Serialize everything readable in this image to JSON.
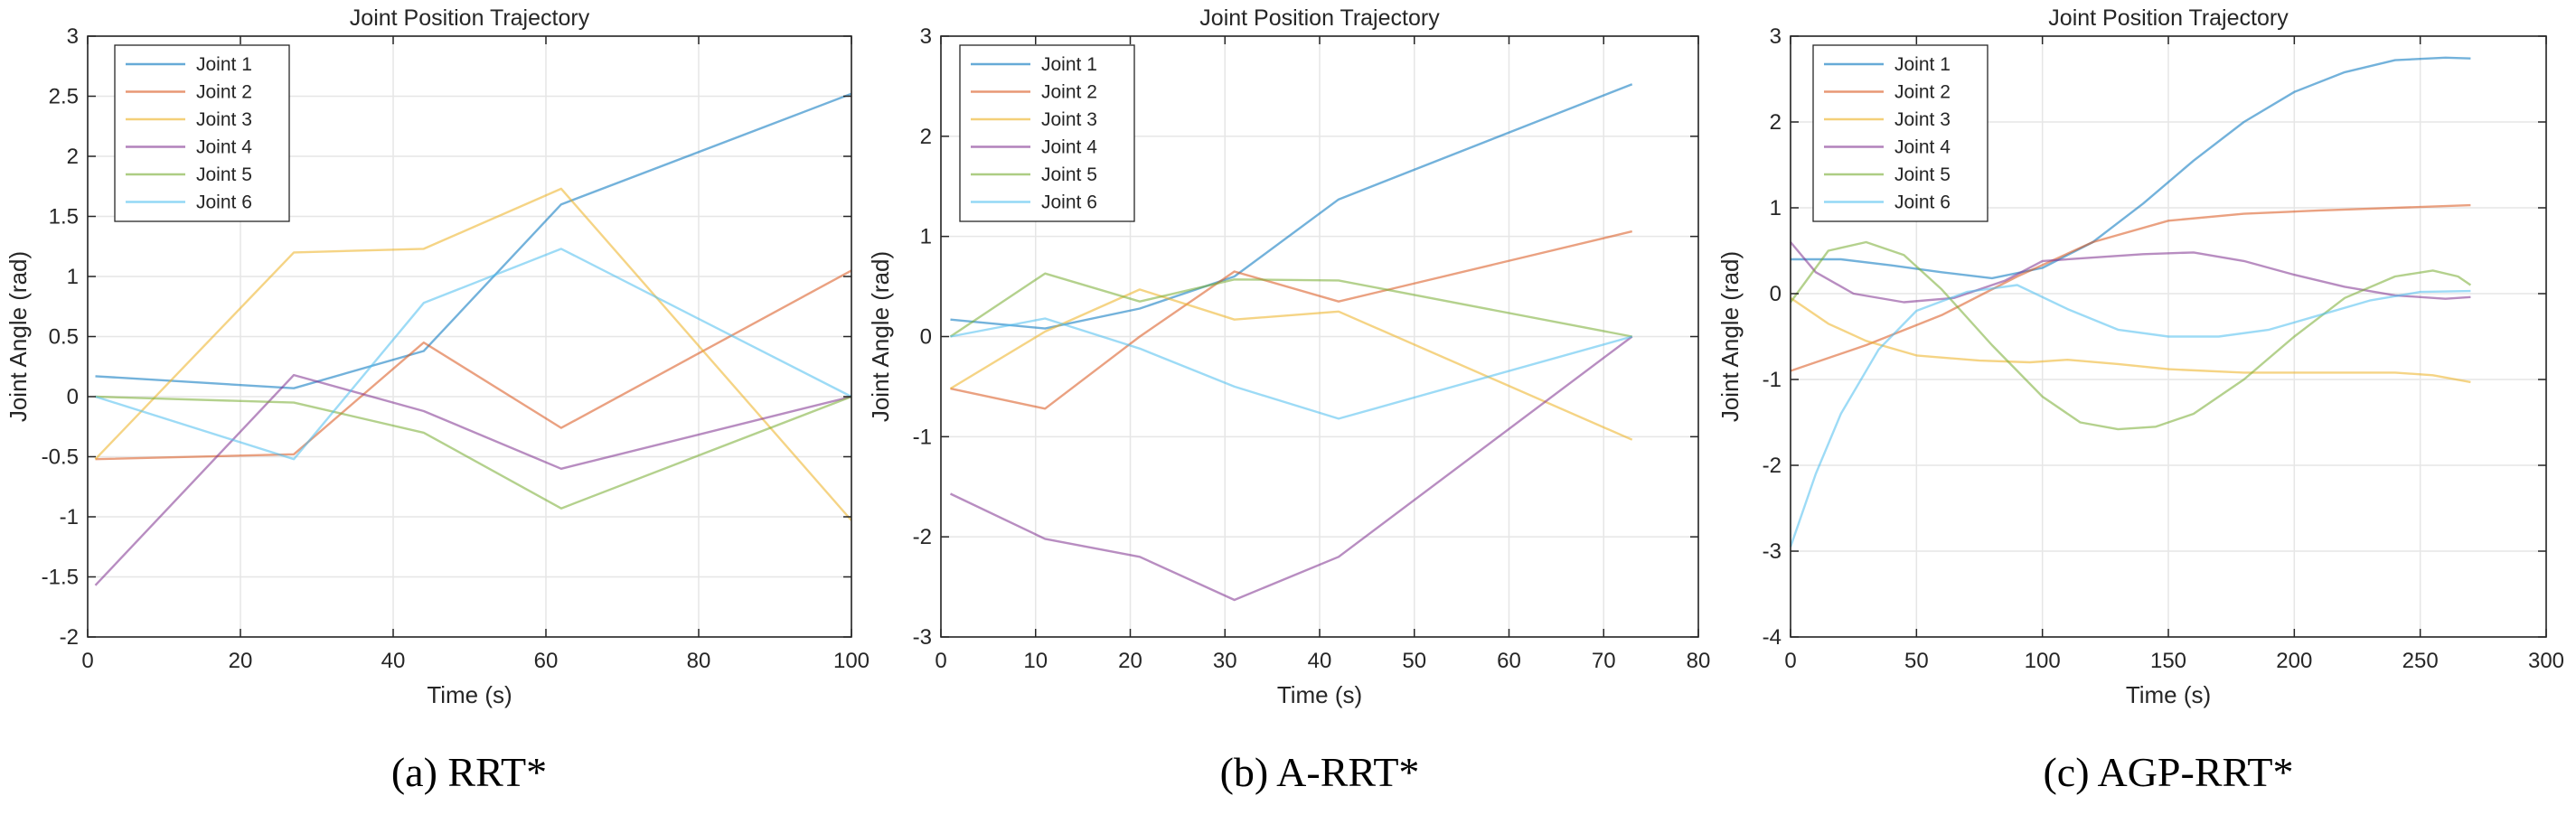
{
  "chart_data": [
    {
      "type": "line",
      "title": "Joint Position Trajectory",
      "xlabel": "Time (s)",
      "ylabel": "Joint Angle (rad)",
      "caption": "(a) RRT*",
      "xlim": [
        0,
        100
      ],
      "ylim": [
        -2,
        3
      ],
      "xticks": [
        0,
        20,
        40,
        60,
        80,
        100
      ],
      "yticks": [
        -2,
        -1.5,
        -1,
        -0.5,
        0,
        0.5,
        1,
        1.5,
        2,
        2.5,
        3
      ],
      "xtick_labels": [
        "0",
        "20",
        "40",
        "60",
        "80",
        "100"
      ],
      "ytick_labels": [
        "-2",
        "-1.5",
        "-1",
        "-0.5",
        "0",
        "0.5",
        "1",
        "1.5",
        "2",
        "2.5",
        "3"
      ],
      "grid": true,
      "legend_position": "top-left",
      "series": [
        {
          "name": "Joint 1",
          "color": "#0072BD",
          "x": [
            1,
            27,
            44,
            62,
            100
          ],
          "y": [
            0.17,
            0.07,
            0.38,
            1.6,
            2.52
          ]
        },
        {
          "name": "Joint 2",
          "color": "#D95319",
          "x": [
            1,
            27,
            44,
            62,
            100
          ],
          "y": [
            -0.52,
            -0.48,
            0.45,
            -0.26,
            1.05
          ]
        },
        {
          "name": "Joint 3",
          "color": "#EDB120",
          "x": [
            1,
            27,
            44,
            62,
            100
          ],
          "y": [
            -0.52,
            1.2,
            1.23,
            1.73,
            -1.03
          ]
        },
        {
          "name": "Joint 4",
          "color": "#7E2F8E",
          "x": [
            1,
            27,
            44,
            62,
            100
          ],
          "y": [
            -1.57,
            0.18,
            -0.12,
            -0.6,
            0
          ]
        },
        {
          "name": "Joint 5",
          "color": "#77AC30",
          "x": [
            1,
            27,
            44,
            62,
            100
          ],
          "y": [
            0,
            -0.05,
            -0.3,
            -0.93,
            0
          ]
        },
        {
          "name": "Joint 6",
          "color": "#4DBEEE",
          "x": [
            1,
            27,
            44,
            62,
            100
          ],
          "y": [
            0,
            -0.52,
            0.78,
            1.23,
            0
          ]
        }
      ]
    },
    {
      "type": "line",
      "title": "Joint Position Trajectory",
      "xlabel": "Time (s)",
      "ylabel": "Joint Angle (rad)",
      "caption": "(b) A-RRT*",
      "xlim": [
        0,
        80
      ],
      "ylim": [
        -3,
        3
      ],
      "xticks": [
        0,
        10,
        20,
        30,
        40,
        50,
        60,
        70,
        80
      ],
      "yticks": [
        -3,
        -2,
        -1,
        0,
        1,
        2,
        3
      ],
      "xtick_labels": [
        "0",
        "10",
        "20",
        "30",
        "40",
        "50",
        "60",
        "70",
        "80"
      ],
      "ytick_labels": [
        "-3",
        "-2",
        "-1",
        "0",
        "1",
        "2",
        "3"
      ],
      "grid": true,
      "legend_position": "top-left",
      "series": [
        {
          "name": "Joint 1",
          "color": "#0072BD",
          "x": [
            1,
            11,
            21,
            31,
            42,
            73
          ],
          "y": [
            0.17,
            0.08,
            0.28,
            0.6,
            1.37,
            2.52
          ]
        },
        {
          "name": "Joint 2",
          "color": "#D95319",
          "x": [
            1,
            11,
            21,
            31,
            42,
            73
          ],
          "y": [
            -0.52,
            -0.72,
            0.0,
            0.65,
            0.35,
            1.05
          ]
        },
        {
          "name": "Joint 3",
          "color": "#EDB120",
          "x": [
            1,
            11,
            21,
            31,
            42,
            73
          ],
          "y": [
            -0.52,
            0.05,
            0.47,
            0.17,
            0.25,
            -1.03
          ]
        },
        {
          "name": "Joint 4",
          "color": "#7E2F8E",
          "x": [
            1,
            11,
            21,
            31,
            42,
            73
          ],
          "y": [
            -1.57,
            -2.02,
            -2.2,
            -2.63,
            -2.2,
            0
          ]
        },
        {
          "name": "Joint 5",
          "color": "#77AC30",
          "x": [
            1,
            11,
            21,
            31,
            42,
            73
          ],
          "y": [
            0,
            0.63,
            0.35,
            0.57,
            0.56,
            0
          ]
        },
        {
          "name": "Joint 6",
          "color": "#4DBEEE",
          "x": [
            1,
            11,
            21,
            31,
            42,
            73
          ],
          "y": [
            0,
            0.18,
            -0.12,
            -0.5,
            -0.82,
            0
          ]
        }
      ]
    },
    {
      "type": "line",
      "title": "Joint Position Trajectory",
      "xlabel": "Time (s)",
      "ylabel": "Joint Angle (rad)",
      "caption": "(c) AGP-RRT*",
      "xlim": [
        0,
        300
      ],
      "ylim": [
        -4,
        3
      ],
      "xticks": [
        0,
        50,
        100,
        150,
        200,
        250,
        300
      ],
      "yticks": [
        -4,
        -3,
        -2,
        -1,
        0,
        1,
        2,
        3
      ],
      "xtick_labels": [
        "0",
        "50",
        "100",
        "150",
        "200",
        "250",
        "300"
      ],
      "ytick_labels": [
        "-4",
        "-3",
        "-2",
        "-1",
        "0",
        "1",
        "2",
        "3"
      ],
      "grid": true,
      "legend_position": "top-left",
      "series": [
        {
          "name": "Joint 1",
          "color": "#0072BD",
          "x": [
            0,
            20,
            40,
            60,
            80,
            100,
            120,
            140,
            160,
            180,
            200,
            220,
            240,
            260,
            270
          ],
          "y": [
            0.4,
            0.4,
            0.33,
            0.25,
            0.18,
            0.3,
            0.6,
            1.05,
            1.55,
            2.0,
            2.35,
            2.58,
            2.72,
            2.75,
            2.74
          ]
        },
        {
          "name": "Joint 2",
          "color": "#D95319",
          "x": [
            0,
            30,
            60,
            90,
            120,
            150,
            180,
            210,
            240,
            270
          ],
          "y": [
            -0.9,
            -0.6,
            -0.25,
            0.2,
            0.6,
            0.85,
            0.93,
            0.97,
            1.0,
            1.03
          ]
        },
        {
          "name": "Joint 3",
          "color": "#EDB120",
          "x": [
            0,
            15,
            30,
            50,
            75,
            95,
            110,
            130,
            150,
            180,
            210,
            240,
            255,
            270
          ],
          "y": [
            -0.05,
            -0.35,
            -0.55,
            -0.72,
            -0.78,
            -0.8,
            -0.77,
            -0.82,
            -0.88,
            -0.92,
            -0.92,
            -0.92,
            -0.95,
            -1.03
          ]
        },
        {
          "name": "Joint 4",
          "color": "#7E2F8E",
          "x": [
            0,
            10,
            25,
            45,
            65,
            85,
            100,
            120,
            140,
            160,
            180,
            200,
            220,
            240,
            260,
            270
          ],
          "y": [
            0.6,
            0.25,
            0.0,
            -0.1,
            -0.05,
            0.15,
            0.38,
            0.42,
            0.46,
            0.48,
            0.38,
            0.22,
            0.08,
            -0.02,
            -0.06,
            -0.04
          ]
        },
        {
          "name": "Joint 5",
          "color": "#77AC30",
          "x": [
            0,
            15,
            30,
            45,
            60,
            80,
            100,
            115,
            130,
            145,
            160,
            180,
            200,
            220,
            240,
            255,
            265,
            270
          ],
          "y": [
            -0.1,
            0.5,
            0.6,
            0.45,
            0.05,
            -0.6,
            -1.2,
            -1.5,
            -1.58,
            -1.55,
            -1.4,
            -1.0,
            -0.5,
            -0.05,
            0.2,
            0.27,
            0.2,
            0.1
          ]
        },
        {
          "name": "Joint 6",
          "color": "#4DBEEE",
          "x": [
            0,
            10,
            20,
            35,
            50,
            70,
            90,
            110,
            130,
            150,
            170,
            190,
            210,
            230,
            250,
            270
          ],
          "y": [
            -2.95,
            -2.1,
            -1.4,
            -0.65,
            -0.2,
            0.02,
            0.1,
            -0.18,
            -0.42,
            -0.5,
            -0.5,
            -0.42,
            -0.25,
            -0.08,
            0.02,
            0.03
          ]
        }
      ]
    }
  ]
}
